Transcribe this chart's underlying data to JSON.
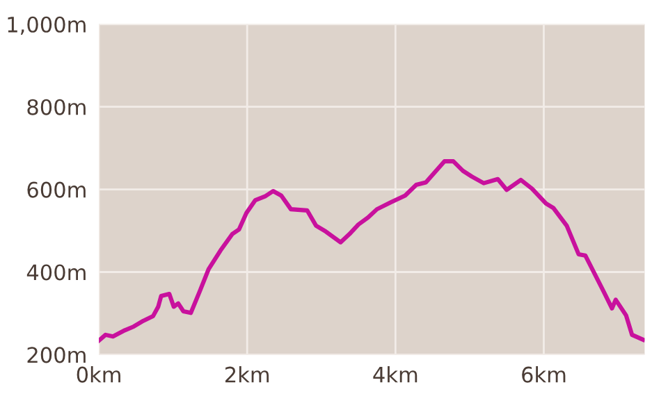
{
  "chart_data": {
    "type": "line",
    "x": [
      0,
      0.09,
      0.19,
      0.35,
      0.47,
      0.6,
      0.73,
      0.8,
      0.84,
      0.95,
      1.01,
      1.07,
      1.14,
      1.24,
      1.36,
      1.48,
      1.64,
      1.8,
      1.89,
      1.99,
      2.11,
      2.24,
      2.35,
      2.46,
      2.59,
      2.81,
      2.93,
      3.06,
      3.26,
      3.38,
      3.5,
      3.63,
      3.75,
      3.94,
      4.13,
      4.28,
      4.41,
      4.66,
      4.78,
      4.91,
      5.03,
      5.19,
      5.38,
      5.5,
      5.69,
      5.84,
      6.03,
      6.13,
      6.31,
      6.47,
      6.56,
      6.81,
      6.92,
      6.97,
      7.11,
      7.19,
      7.34
    ],
    "series": [
      {
        "color": "#c8119d",
        "values": [
          234,
          248,
          244,
          259,
          268,
          282,
          293,
          316,
          342,
          347,
          316,
          324,
          305,
          301,
          353,
          407,
          452,
          492,
          503,
          543,
          574,
          583,
          596,
          585,
          552,
          549,
          512,
          498,
          472,
          492,
          515,
          532,
          552,
          569,
          585,
          611,
          617,
          668,
          668,
          645,
          631,
          615,
          625,
          599,
          623,
          602,
          566,
          555,
          512,
          443,
          440,
          352,
          312,
          333,
          295,
          248,
          236
        ]
      }
    ],
    "xlim": [
      0,
      7.36
    ],
    "ylim": [
      200,
      1000
    ],
    "xticks": [
      {
        "value": 0,
        "label": "0km"
      },
      {
        "value": 2,
        "label": "2km"
      },
      {
        "value": 4,
        "label": "4km"
      },
      {
        "value": 6,
        "label": "6km"
      }
    ],
    "yticks": [
      {
        "value": 200,
        "label": "200m"
      },
      {
        "value": 400,
        "label": "400m"
      },
      {
        "value": 600,
        "label": "600m"
      },
      {
        "value": 800,
        "label": "800m"
      },
      {
        "value": 1000,
        "label": "1,000m"
      }
    ],
    "grid": true
  }
}
